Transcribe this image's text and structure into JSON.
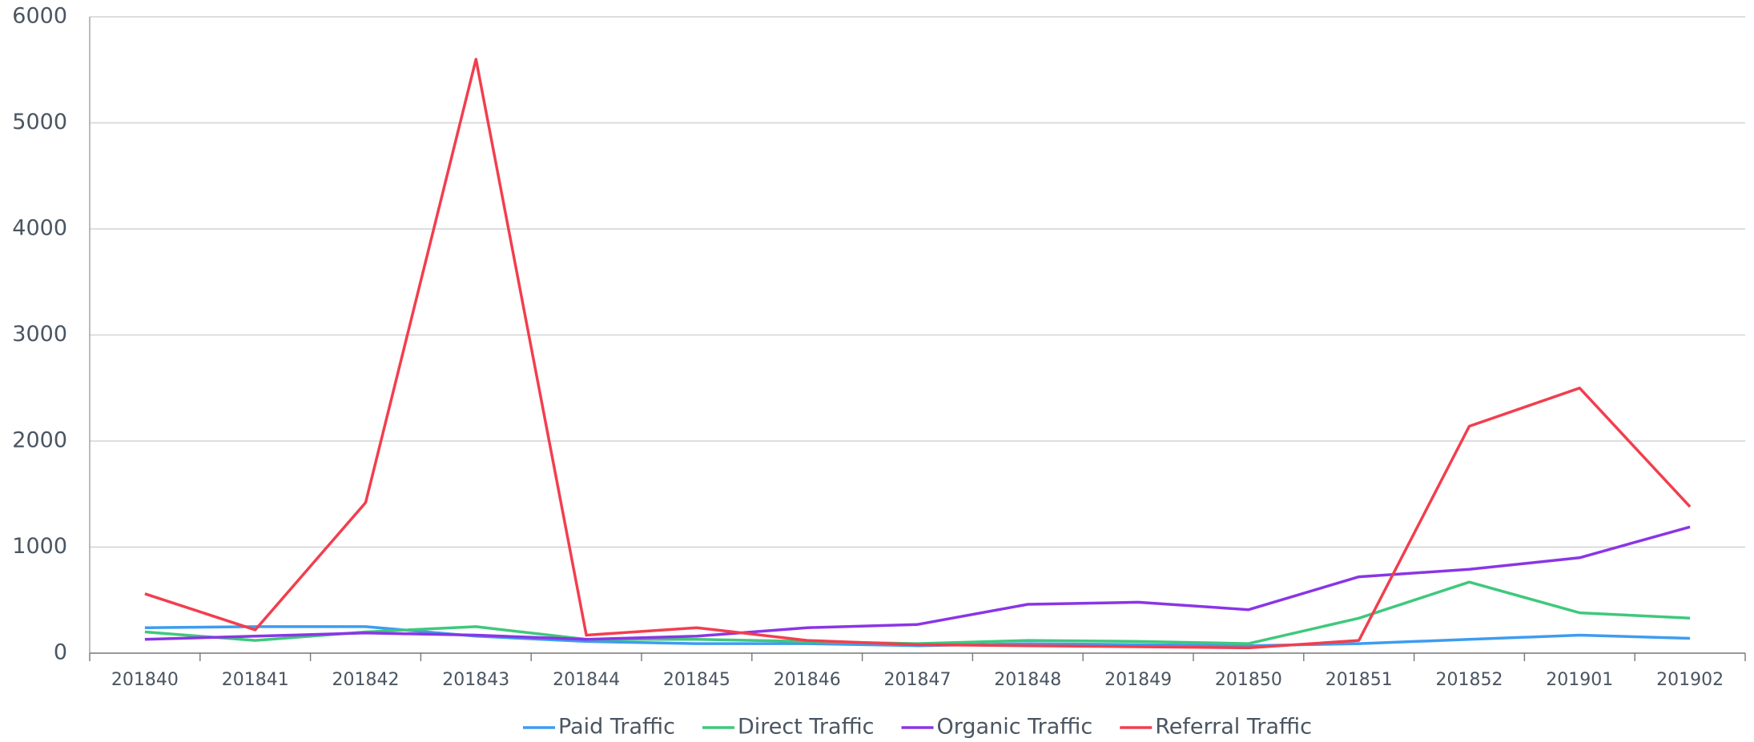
{
  "chart_data": {
    "type": "line",
    "categories": [
      "201840",
      "201841",
      "201842",
      "201843",
      "201844",
      "201845",
      "201846",
      "201847",
      "201848",
      "201849",
      "201850",
      "201851",
      "201852",
      "201901",
      "201902"
    ],
    "series": [
      {
        "name": "Paid Traffic",
        "color": "#3e9cf0",
        "values": [
          240,
          250,
          250,
          160,
          110,
          90,
          90,
          70,
          90,
          80,
          70,
          90,
          130,
          170,
          140
        ]
      },
      {
        "name": "Direct Traffic",
        "color": "#3fc87c",
        "values": [
          200,
          120,
          200,
          250,
          130,
          130,
          110,
          90,
          120,
          110,
          90,
          330,
          670,
          380,
          330
        ]
      },
      {
        "name": "Organic Traffic",
        "color": "#8a35e6",
        "values": [
          130,
          160,
          190,
          170,
          130,
          160,
          240,
          270,
          460,
          480,
          410,
          720,
          790,
          900,
          1190
        ]
      },
      {
        "name": "Referral Traffic",
        "color": "#f23e4e",
        "values": [
          560,
          220,
          1420,
          5600,
          170,
          240,
          120,
          80,
          70,
          60,
          50,
          120,
          2140,
          2500,
          1380
        ]
      }
    ],
    "ylim": [
      0,
      6000
    ],
    "yticks": [
      0,
      1000,
      2000,
      3000,
      4000,
      5000,
      6000
    ],
    "grid": true,
    "legend": "bottom"
  }
}
